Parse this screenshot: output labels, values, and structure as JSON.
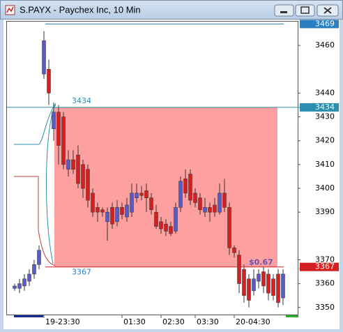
{
  "window": {
    "title": "S.PAYX - Paychex Inc, 10 Min"
  },
  "chart_data": {
    "type": "candlestick",
    "categories": [
      null,
      null,
      null,
      null,
      null,
      null,
      "19-23:30",
      null,
      null,
      null,
      null,
      null,
      null,
      null,
      null,
      null,
      null,
      null,
      null,
      null,
      null,
      null,
      "01:30",
      null,
      null,
      null,
      null,
      null,
      null,
      null,
      "02:30",
      null,
      null,
      null,
      null,
      null,
      null,
      "03:30",
      null,
      null,
      null,
      null,
      null,
      null,
      null,
      "20-04:30",
      null,
      null,
      null,
      null,
      null,
      null,
      null,
      null,
      null,
      null
    ],
    "open": [
      3358,
      3358,
      3359,
      3361,
      3364,
      3368,
      3448,
      3450,
      3425,
      3432,
      3430,
      3408,
      3412,
      3414,
      3410,
      3408,
      3398,
      3392,
      3391,
      3386,
      3392,
      3386,
      3392,
      3388,
      3390,
      3396,
      3398,
      3399,
      3396,
      3390,
      3386,
      3385,
      3384,
      3382,
      3392,
      3404,
      3406,
      3398,
      3396,
      3390,
      3392,
      3393,
      3390,
      3398,
      3392,
      3375,
      3372,
      3366,
      3362,
      3357,
      3361,
      3365,
      3364,
      3362,
      3364,
      3354
    ],
    "high": [
      3360,
      3362,
      3364,
      3366,
      3370,
      3376,
      3466,
      3454,
      3436,
      3435,
      3432,
      3416,
      3416,
      3418,
      3412,
      3410,
      3400,
      3394,
      3392,
      3392,
      3394,
      3395,
      3394,
      3396,
      3402,
      3402,
      3401,
      3402,
      3398,
      3393,
      3388,
      3387,
      3386,
      3394,
      3405,
      3408,
      3408,
      3400,
      3398,
      3396,
      3394,
      3396,
      3402,
      3404,
      3394,
      3376,
      3374,
      3368,
      3364,
      3366,
      3366,
      3367,
      3366,
      3364,
      3366,
      3366
    ],
    "low": [
      3357,
      3356,
      3357,
      3359,
      3362,
      3366,
      3446,
      3435,
      3420,
      3410,
      3408,
      3405,
      3406,
      3400,
      3396,
      3392,
      3388,
      3386,
      3388,
      3378,
      3383,
      3384,
      3387,
      3386,
      3388,
      3394,
      3395,
      3390,
      3389,
      3383,
      3381,
      3380,
      3380,
      3381,
      3390,
      3396,
      3393,
      3392,
      3389,
      3388,
      3386,
      3388,
      3389,
      3390,
      3372,
      3371,
      3356,
      3352,
      3350,
      3355,
      3358,
      3356,
      3353,
      3353,
      3350,
      3351
    ],
    "close": [
      3359,
      3360,
      3362,
      3364,
      3368,
      3374,
      3462,
      3440,
      3432,
      3418,
      3410,
      3412,
      3408,
      3402,
      3400,
      3395,
      3390,
      3390,
      3390,
      3390,
      3385,
      3392,
      3389,
      3393,
      3398,
      3398,
      3397,
      3396,
      3391,
      3384,
      3383,
      3382,
      3381,
      3392,
      3403,
      3398,
      3395,
      3394,
      3391,
      3392,
      3390,
      3390,
      3398,
      3392,
      3375,
      3373,
      3360,
      3355,
      3353,
      3362,
      3364,
      3359,
      3356,
      3355,
      3352,
      3364
    ],
    "up_color": "#5a5ac8",
    "down_color": "#d42020",
    "levels": [
      {
        "value": 3469,
        "color": "#2a7fc0"
      },
      {
        "value": 3434,
        "color": "#2a8fb0"
      },
      {
        "value": 3367,
        "color": "#d42020"
      }
    ],
    "zone_color": "#ff8080",
    "annotation": "$0.67",
    "ylim": [
      3347,
      3470
    ],
    "yticks": [
      3350,
      3360,
      3370,
      3390,
      3400,
      3410,
      3420,
      3430,
      3440,
      3460
    ]
  }
}
